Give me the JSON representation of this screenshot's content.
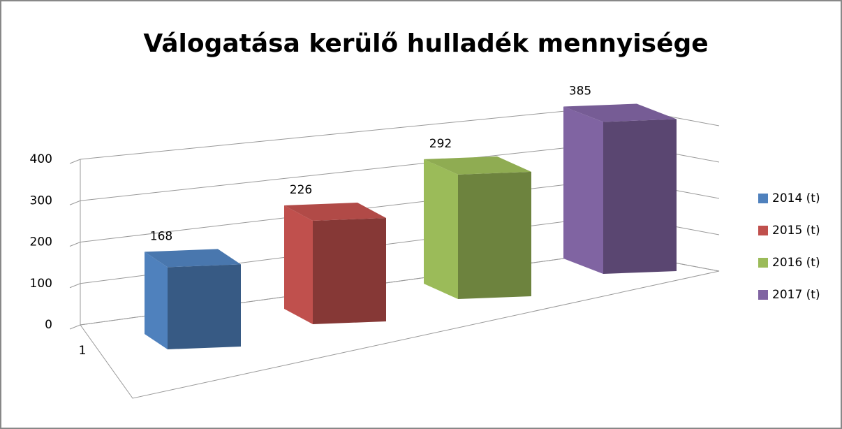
{
  "chart_data": {
    "type": "bar",
    "title": "Válogatása kerülő hulladék mennyisége",
    "categories": [
      "1"
    ],
    "series": [
      {
        "name": "2014 (t)",
        "color": "#4f81bd",
        "values": [
          168
        ]
      },
      {
        "name": "2015 (t)",
        "color": "#c0504d",
        "values": [
          226
        ]
      },
      {
        "name": "2016 (t)",
        "color": "#9bbb59",
        "values": [
          292
        ]
      },
      {
        "name": "2017 (t)",
        "color": "#8064a2",
        "values": [
          385
        ]
      }
    ],
    "ylim": [
      0,
      400
    ],
    "yticks": [
      0,
      100,
      200,
      300,
      400
    ],
    "grid": true,
    "legend": "right",
    "data_labels": true
  }
}
